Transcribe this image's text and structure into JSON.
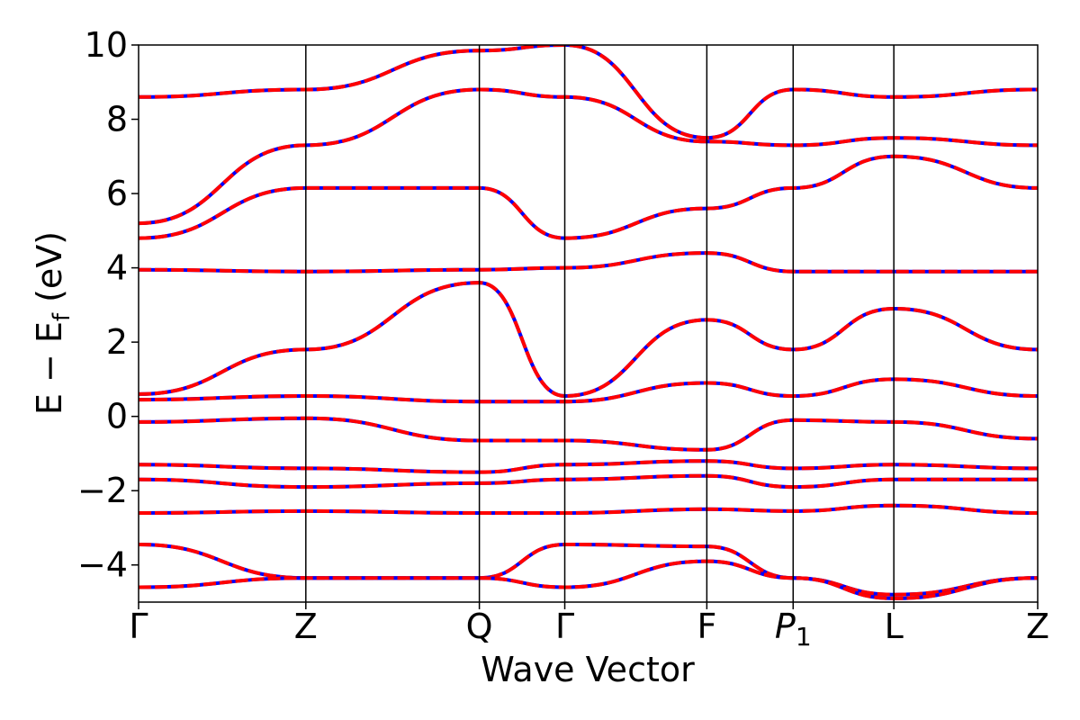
{
  "chart_data": {
    "type": "line",
    "xlabel": "Wave Vector",
    "ylabel": "E − E_f (eV)",
    "ylabel_parts": {
      "main": "E − E",
      "sub": "f",
      "unit": " (eV)"
    },
    "ylim": [
      -5,
      10
    ],
    "y_ticks": [
      -4,
      -2,
      0,
      2,
      4,
      6,
      8,
      10
    ],
    "y_tick_labels": [
      "−4",
      "−2",
      "0",
      "2",
      "4",
      "6",
      "8",
      "10"
    ],
    "k_points": [
      {
        "label": "Γ",
        "k": 0.0
      },
      {
        "label": "Z",
        "k": 0.186
      },
      {
        "label": "Q",
        "k": 0.379
      },
      {
        "label": "Γ",
        "k": 0.474
      },
      {
        "label": "F",
        "k": 0.632
      },
      {
        "label": "P",
        "sub": "1",
        "italic": true,
        "k": 0.728
      },
      {
        "label": "L",
        "k": 0.84
      },
      {
        "label": "Z",
        "k": 1.0
      }
    ],
    "k_range": [
      0,
      1
    ],
    "series": [
      {
        "style": "solid",
        "color": "#0000ff"
      },
      {
        "style": "dashed",
        "color": "#ff0000"
      }
    ],
    "band_nodes": [
      [
        0.0,
        -0.15
      ],
      [
        0.186,
        -0.05
      ],
      [
        0.379,
        -0.65
      ],
      [
        0.474,
        -0.65
      ],
      [
        0.632,
        -0.9
      ],
      [
        0.728,
        -0.1
      ],
      [
        0.84,
        -0.15
      ],
      [
        1.0,
        -0.6
      ],
      [
        0.0,
        0.45
      ],
      [
        0.186,
        0.55
      ],
      [
        0.379,
        0.4
      ],
      [
        0.474,
        0.4
      ],
      [
        0.632,
        0.9
      ],
      [
        0.728,
        0.55
      ],
      [
        0.84,
        1.0
      ],
      [
        1.0,
        0.55
      ],
      [
        0.0,
        0.6
      ],
      [
        0.186,
        1.8
      ],
      [
        0.379,
        3.6
      ],
      [
        0.474,
        0.55
      ],
      [
        0.632,
        2.6
      ],
      [
        0.728,
        1.8
      ],
      [
        0.84,
        2.9
      ],
      [
        1.0,
        1.8
      ],
      [
        0.0,
        3.95
      ],
      [
        0.186,
        3.9
      ],
      [
        0.379,
        3.95
      ],
      [
        0.474,
        4.0
      ],
      [
        0.632,
        4.4
      ],
      [
        0.728,
        3.9
      ],
      [
        0.84,
        3.9
      ],
      [
        1.0,
        3.9
      ],
      [
        0.0,
        4.8
      ],
      [
        0.186,
        6.15
      ],
      [
        0.379,
        6.15
      ],
      [
        0.474,
        4.8
      ],
      [
        0.632,
        5.6
      ],
      [
        0.728,
        6.15
      ],
      [
        0.84,
        7.0
      ],
      [
        1.0,
        6.15
      ],
      [
        0.0,
        5.2
      ],
      [
        0.186,
        7.3
      ],
      [
        0.379,
        8.8
      ],
      [
        0.474,
        8.6
      ],
      [
        0.632,
        7.4
      ],
      [
        0.728,
        7.3
      ],
      [
        0.84,
        7.5
      ],
      [
        1.0,
        7.3
      ],
      [
        0.0,
        8.6
      ],
      [
        0.186,
        8.8
      ],
      [
        0.379,
        9.85
      ],
      [
        0.474,
        10.0
      ],
      [
        0.632,
        7.5
      ],
      [
        0.728,
        8.8
      ],
      [
        0.84,
        8.6
      ],
      [
        1.0,
        8.8
      ],
      [
        0.0,
        -1.3
      ],
      [
        0.186,
        -1.4
      ],
      [
        0.379,
        -1.5
      ],
      [
        0.474,
        -1.3
      ],
      [
        0.632,
        -1.2
      ],
      [
        0.728,
        -1.4
      ],
      [
        0.84,
        -1.3
      ],
      [
        1.0,
        -1.4
      ],
      [
        0.0,
        -1.7
      ],
      [
        0.186,
        -1.9
      ],
      [
        0.379,
        -1.8
      ],
      [
        0.474,
        -1.7
      ],
      [
        0.632,
        -1.6
      ],
      [
        0.728,
        -1.9
      ],
      [
        0.84,
        -1.7
      ],
      [
        1.0,
        -1.7
      ],
      [
        0.0,
        -2.6
      ],
      [
        0.186,
        -2.55
      ],
      [
        0.379,
        -2.6
      ],
      [
        0.474,
        -2.6
      ],
      [
        0.632,
        -2.5
      ],
      [
        0.728,
        -2.55
      ],
      [
        0.84,
        -2.4
      ],
      [
        1.0,
        -2.6
      ],
      [
        0.0,
        -3.45
      ],
      [
        0.186,
        -4.35
      ],
      [
        0.379,
        -4.35
      ],
      [
        0.474,
        -3.45
      ],
      [
        0.632,
        -3.5
      ],
      [
        0.728,
        -4.35
      ],
      [
        0.84,
        -4.8
      ],
      [
        1.0,
        -4.35
      ],
      [
        0.0,
        -4.6
      ],
      [
        0.186,
        -4.35
      ],
      [
        0.379,
        -4.35
      ],
      [
        0.474,
        -4.6
      ],
      [
        0.632,
        -3.9
      ],
      [
        0.728,
        -4.35
      ],
      [
        0.84,
        -4.9
      ],
      [
        1.0,
        -4.35
      ]
    ]
  }
}
